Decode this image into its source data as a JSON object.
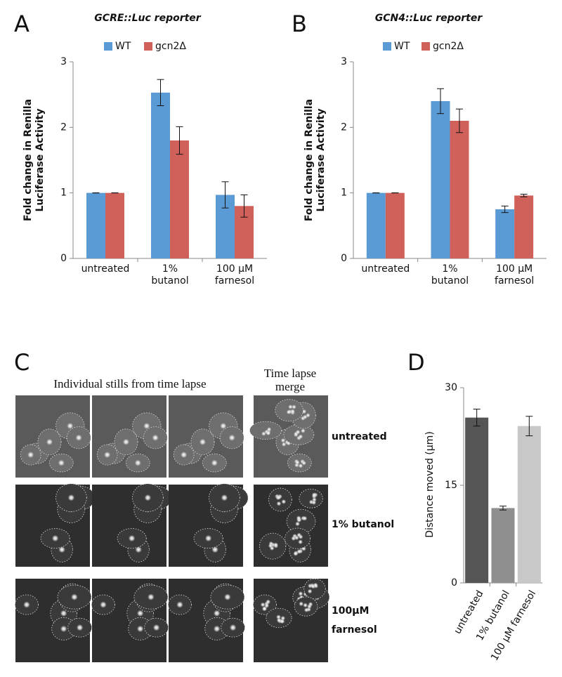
{
  "panel_labels": [
    "A",
    "B",
    "C",
    "D"
  ],
  "chart_data": [
    {
      "type": "bar",
      "title": "GCRE::Luc reporter",
      "ylabel": [
        "Fold change in Renilla",
        "Luciferase Activity"
      ],
      "categories": [
        [
          "untreated"
        ],
        [
          "1%",
          "butanol"
        ],
        [
          "100 μM",
          "farnesol"
        ]
      ],
      "series": [
        {
          "name": "WT",
          "color": "#5b9bd5",
          "values": [
            1,
            2.53,
            0.97
          ],
          "errors": [
            0,
            0.2,
            0.2
          ]
        },
        {
          "name": "gcn2Δ",
          "color": "#d0605a",
          "values": [
            1,
            1.8,
            0.8
          ],
          "errors": [
            0,
            0.21,
            0.17
          ]
        }
      ],
      "ylim": [
        0,
        3
      ],
      "yticks": [
        0,
        1,
        2,
        3
      ],
      "legend": "top"
    },
    {
      "type": "bar",
      "title": "GCN4::Luc reporter",
      "ylabel": [
        "Fold change in Renilla",
        "Luciferase Activity"
      ],
      "categories": [
        [
          "untreated"
        ],
        [
          "1%",
          "butanol"
        ],
        [
          "100 μM",
          "farnesol"
        ]
      ],
      "series": [
        {
          "name": "WT",
          "color": "#5b9bd5",
          "values": [
            1,
            2.4,
            0.75
          ],
          "errors": [
            0,
            0.19,
            0.05
          ]
        },
        {
          "name": "gcn2Δ",
          "color": "#d0605a",
          "values": [
            1,
            2.1,
            0.96
          ],
          "errors": [
            0,
            0.18,
            0.02
          ]
        }
      ],
      "ylim": [
        0,
        3
      ],
      "yticks": [
        0,
        1,
        2,
        3
      ],
      "legend": "top"
    },
    {
      "type": "bar",
      "ylabel": [
        "Distance moved (µm)"
      ],
      "categories": [
        [
          "untreated"
        ],
        [
          "1% butanol"
        ],
        [
          "100 µM farnesol"
        ]
      ],
      "values": [
        25.4,
        11.5,
        24.1
      ],
      "errors": [
        1.3,
        0.3,
        1.5
      ],
      "colors": [
        "#555555",
        "#8f8f8f",
        "#c8c8c8"
      ],
      "ylim": [
        0,
        30
      ],
      "yticks": [
        0,
        15,
        30
      ]
    }
  ],
  "microscopy": {
    "heading_stills": "Individual stills from time lapse",
    "heading_merge": [
      "Time lapse",
      "merge"
    ],
    "rows": [
      [
        "untreated"
      ],
      [
        "1% butanol"
      ],
      [
        "100µM",
        "farnesol"
      ]
    ]
  }
}
